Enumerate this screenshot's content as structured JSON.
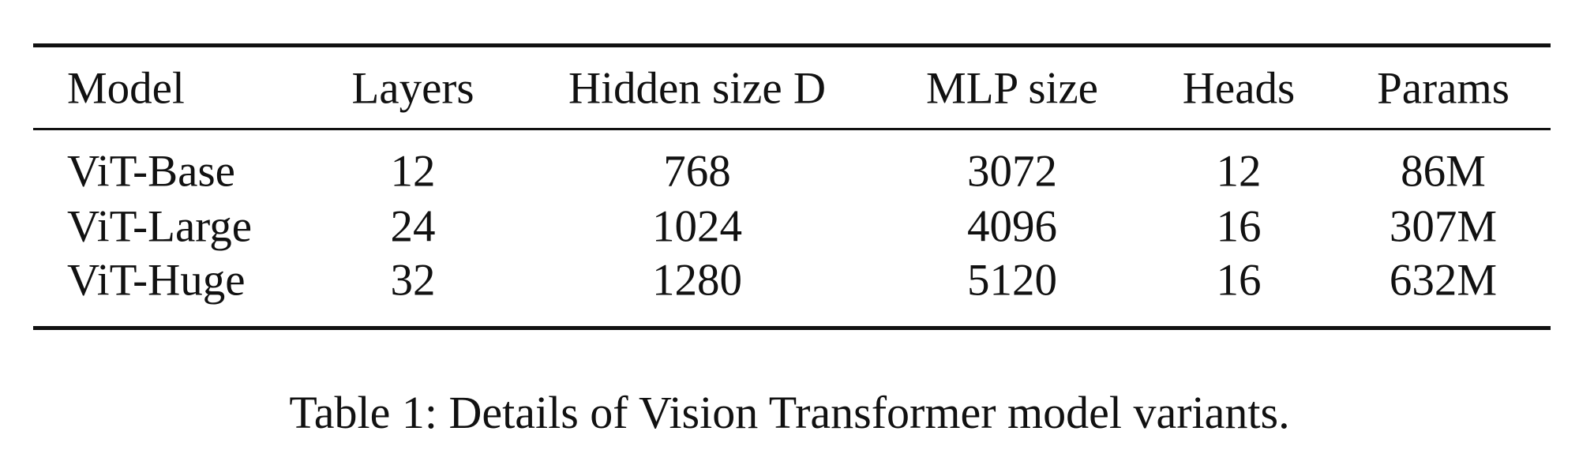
{
  "table": {
    "header": [
      "Model",
      "Layers",
      "Hidden size D",
      "MLP size",
      "Heads",
      "Params"
    ],
    "rows": [
      [
        "ViT-Base",
        12,
        768,
        3072,
        12,
        "86M"
      ],
      [
        "ViT-Large",
        24,
        1024,
        4096,
        16,
        "307M"
      ],
      [
        "ViT-Huge",
        32,
        1280,
        5120,
        16,
        "632M"
      ]
    ]
  },
  "caption": "Table 1: Details of Vision Transformer model variants."
}
